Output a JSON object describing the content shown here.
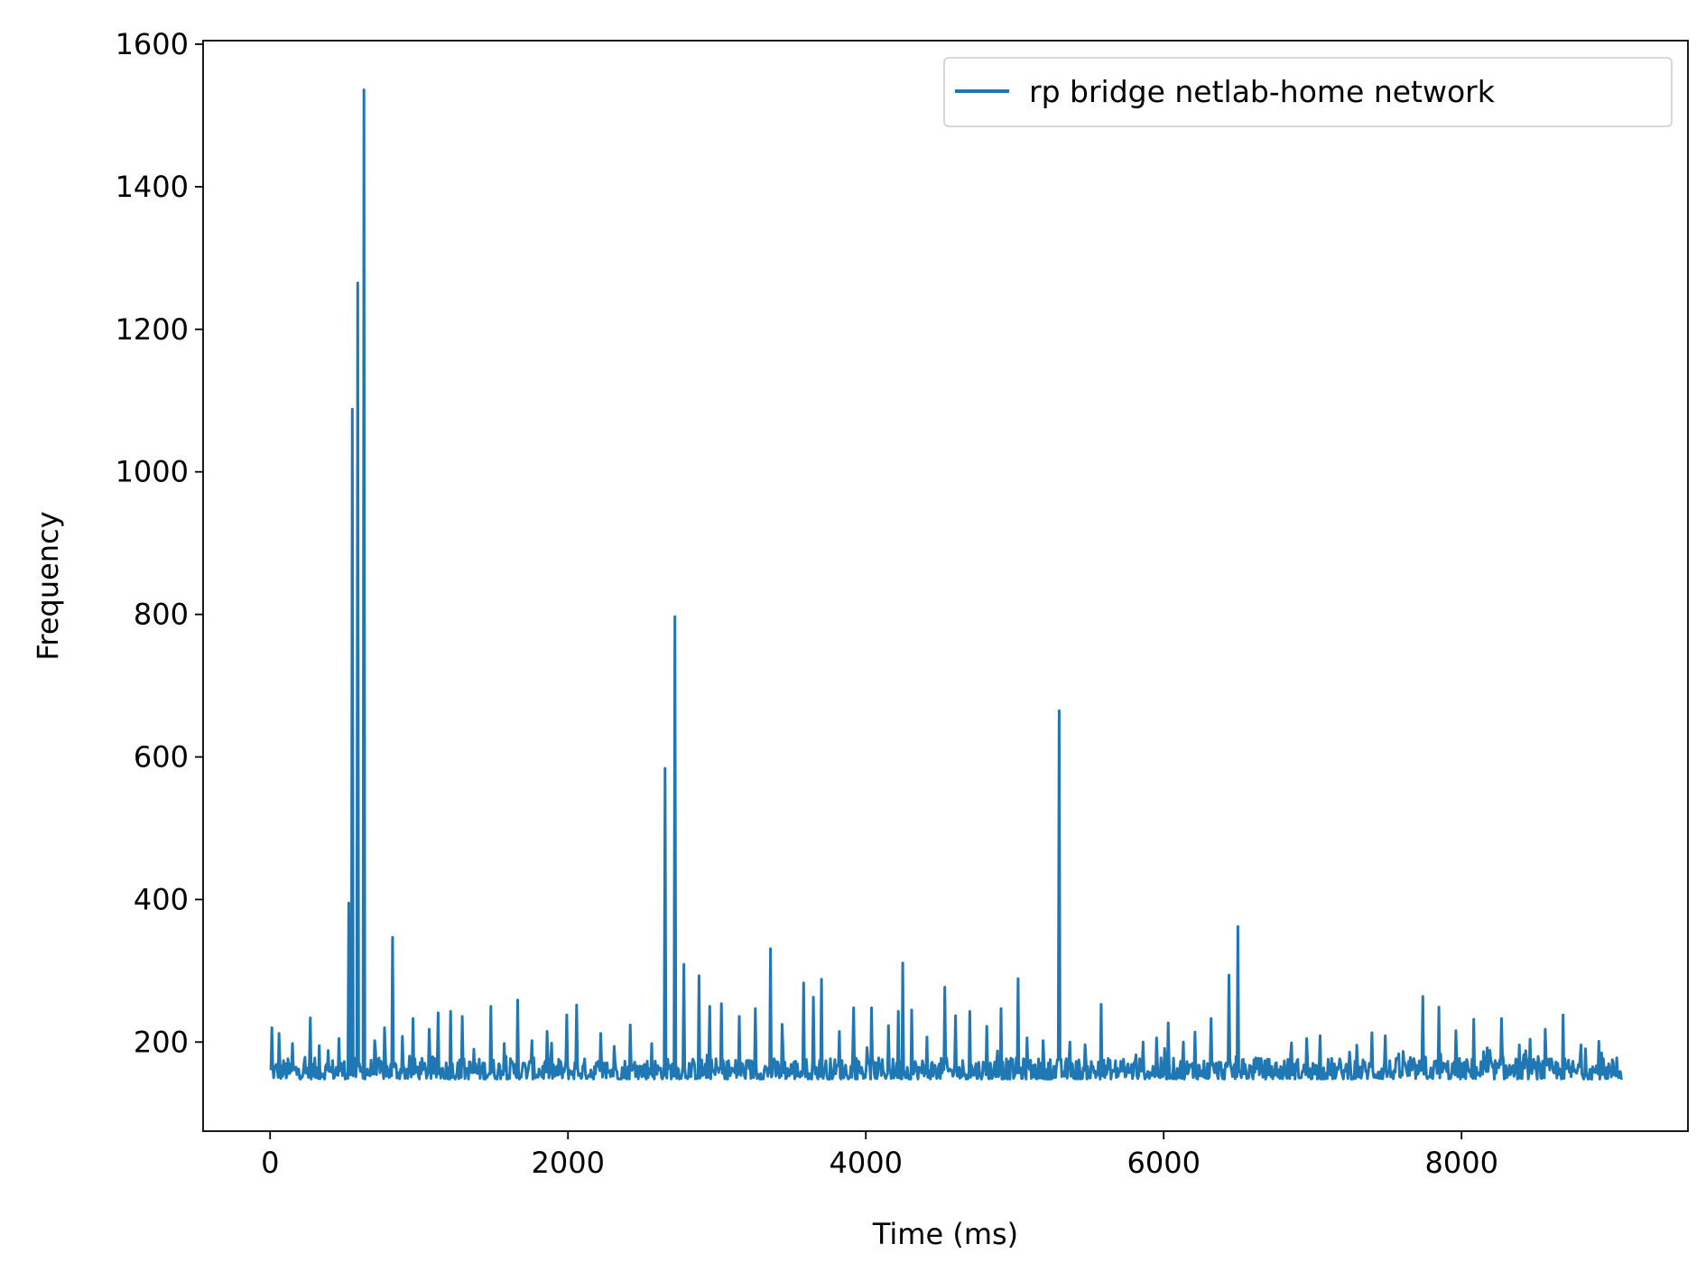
{
  "chart_data": {
    "type": "line",
    "title": "",
    "xlabel": "Time (ms)",
    "ylabel": "Frequency",
    "xlim": [
      -450,
      9520
    ],
    "ylim": [
      75,
      1605
    ],
    "x_ticks": [
      0,
      2000,
      4000,
      6000,
      8000
    ],
    "y_ticks": [
      200,
      400,
      600,
      800,
      1000,
      1200,
      1400,
      1600
    ],
    "grid": false,
    "legend_position": "top-right",
    "colors": {
      "series": "#1f77b4",
      "axis": "#000000",
      "background": "#ffffff"
    },
    "series": [
      {
        "name": "rp bridge netlab-home network",
        "baseline": {
          "x_start": 0,
          "x_end": 9080,
          "low": 148,
          "high": 178
        },
        "spikes": [
          {
            "x": 10,
            "y": 220
          },
          {
            "x": 60,
            "y": 212
          },
          {
            "x": 150,
            "y": 198
          },
          {
            "x": 270,
            "y": 234
          },
          {
            "x": 330,
            "y": 195
          },
          {
            "x": 390,
            "y": 188
          },
          {
            "x": 460,
            "y": 205
          },
          {
            "x": 530,
            "y": 395
          },
          {
            "x": 550,
            "y": 1088
          },
          {
            "x": 590,
            "y": 1265
          },
          {
            "x": 630,
            "y": 1536
          },
          {
            "x": 700,
            "y": 202
          },
          {
            "x": 770,
            "y": 220
          },
          {
            "x": 820,
            "y": 347
          },
          {
            "x": 890,
            "y": 208
          },
          {
            "x": 960,
            "y": 233
          },
          {
            "x": 1070,
            "y": 218
          },
          {
            "x": 1130,
            "y": 241
          },
          {
            "x": 1210,
            "y": 243
          },
          {
            "x": 1290,
            "y": 236
          },
          {
            "x": 1370,
            "y": 190
          },
          {
            "x": 1480,
            "y": 250
          },
          {
            "x": 1570,
            "y": 198
          },
          {
            "x": 1660,
            "y": 259
          },
          {
            "x": 1760,
            "y": 202
          },
          {
            "x": 1860,
            "y": 215
          },
          {
            "x": 1990,
            "y": 238
          },
          {
            "x": 2060,
            "y": 252
          },
          {
            "x": 2220,
            "y": 212
          },
          {
            "x": 2310,
            "y": 194
          },
          {
            "x": 2420,
            "y": 224
          },
          {
            "x": 2560,
            "y": 198
          },
          {
            "x": 2650,
            "y": 584
          },
          {
            "x": 2720,
            "y": 797
          },
          {
            "x": 2780,
            "y": 309
          },
          {
            "x": 2880,
            "y": 293
          },
          {
            "x": 2950,
            "y": 250
          },
          {
            "x": 3030,
            "y": 254
          },
          {
            "x": 3150,
            "y": 236
          },
          {
            "x": 3260,
            "y": 247
          },
          {
            "x": 3360,
            "y": 331
          },
          {
            "x": 3440,
            "y": 225
          },
          {
            "x": 3580,
            "y": 283
          },
          {
            "x": 3650,
            "y": 263
          },
          {
            "x": 3700,
            "y": 288
          },
          {
            "x": 3820,
            "y": 215
          },
          {
            "x": 3920,
            "y": 248
          },
          {
            "x": 4040,
            "y": 248
          },
          {
            "x": 4150,
            "y": 223
          },
          {
            "x": 4220,
            "y": 243
          },
          {
            "x": 4250,
            "y": 311
          },
          {
            "x": 4310,
            "y": 245
          },
          {
            "x": 4410,
            "y": 207
          },
          {
            "x": 4530,
            "y": 277
          },
          {
            "x": 4600,
            "y": 237
          },
          {
            "x": 4700,
            "y": 243
          },
          {
            "x": 4810,
            "y": 222
          },
          {
            "x": 4910,
            "y": 247
          },
          {
            "x": 5020,
            "y": 289
          },
          {
            "x": 5080,
            "y": 206
          },
          {
            "x": 5190,
            "y": 202
          },
          {
            "x": 5300,
            "y": 665
          },
          {
            "x": 5370,
            "y": 200
          },
          {
            "x": 5580,
            "y": 253
          },
          {
            "x": 5730,
            "y": 176
          },
          {
            "x": 5860,
            "y": 200
          },
          {
            "x": 5950,
            "y": 206
          },
          {
            "x": 6030,
            "y": 227
          },
          {
            "x": 6130,
            "y": 200
          },
          {
            "x": 6210,
            "y": 214
          },
          {
            "x": 6320,
            "y": 233
          },
          {
            "x": 6440,
            "y": 294
          },
          {
            "x": 6500,
            "y": 362
          },
          {
            "x": 6620,
            "y": 178
          },
          {
            "x": 6860,
            "y": 199
          },
          {
            "x": 6960,
            "y": 205
          },
          {
            "x": 7050,
            "y": 209
          },
          {
            "x": 7250,
            "y": 186
          },
          {
            "x": 7400,
            "y": 213
          },
          {
            "x": 7490,
            "y": 209
          },
          {
            "x": 7610,
            "y": 187
          },
          {
            "x": 7740,
            "y": 264
          },
          {
            "x": 7850,
            "y": 249
          },
          {
            "x": 7960,
            "y": 216
          },
          {
            "x": 8080,
            "y": 232
          },
          {
            "x": 8170,
            "y": 192
          },
          {
            "x": 8270,
            "y": 233
          },
          {
            "x": 8390,
            "y": 196
          },
          {
            "x": 8460,
            "y": 204
          },
          {
            "x": 8560,
            "y": 218
          },
          {
            "x": 8680,
            "y": 238
          },
          {
            "x": 8800,
            "y": 196
          },
          {
            "x": 8920,
            "y": 201
          },
          {
            "x": 9040,
            "y": 178
          }
        ]
      }
    ]
  }
}
